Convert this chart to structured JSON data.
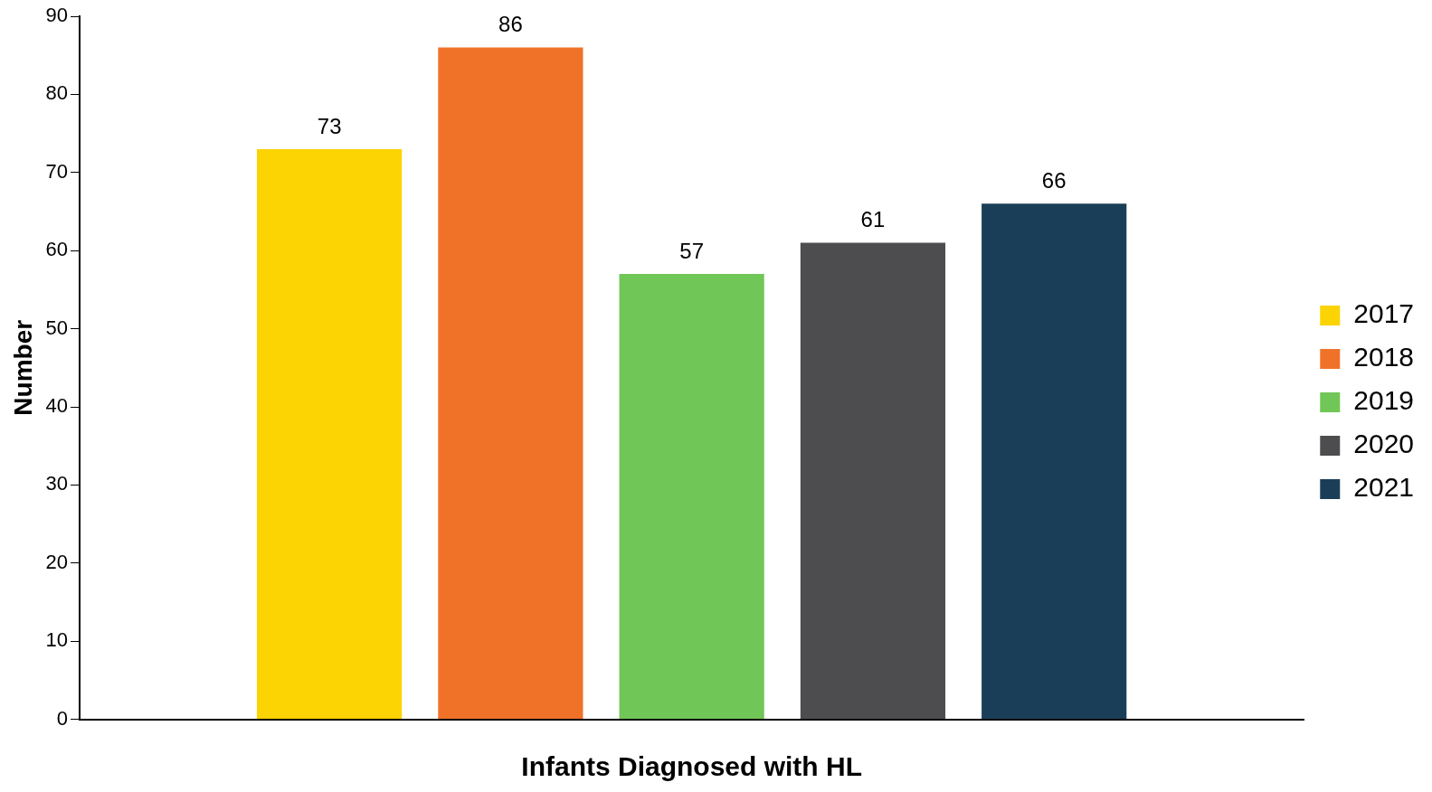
{
  "chart_data": {
    "type": "bar",
    "xlabel": "Infants Diagnosed with HL",
    "ylabel": "Number",
    "categories": [
      null
    ],
    "series": [
      {
        "name": "2017",
        "color": "#fcd303",
        "values": [
          73
        ]
      },
      {
        "name": "2018",
        "color": "#f07229",
        "values": [
          86
        ]
      },
      {
        "name": "2019",
        "color": "#70c656",
        "values": [
          57
        ]
      },
      {
        "name": "2020",
        "color": "#4d4d4f",
        "values": [
          61
        ]
      },
      {
        "name": "2021",
        "color": "#1a3e58",
        "values": [
          66
        ]
      }
    ],
    "ylim": [
      0,
      90
    ],
    "yticks": [
      0,
      10,
      20,
      30,
      40,
      50,
      60,
      70,
      80,
      90
    ],
    "grid": false,
    "legend": "right",
    "data_labels": true
  }
}
